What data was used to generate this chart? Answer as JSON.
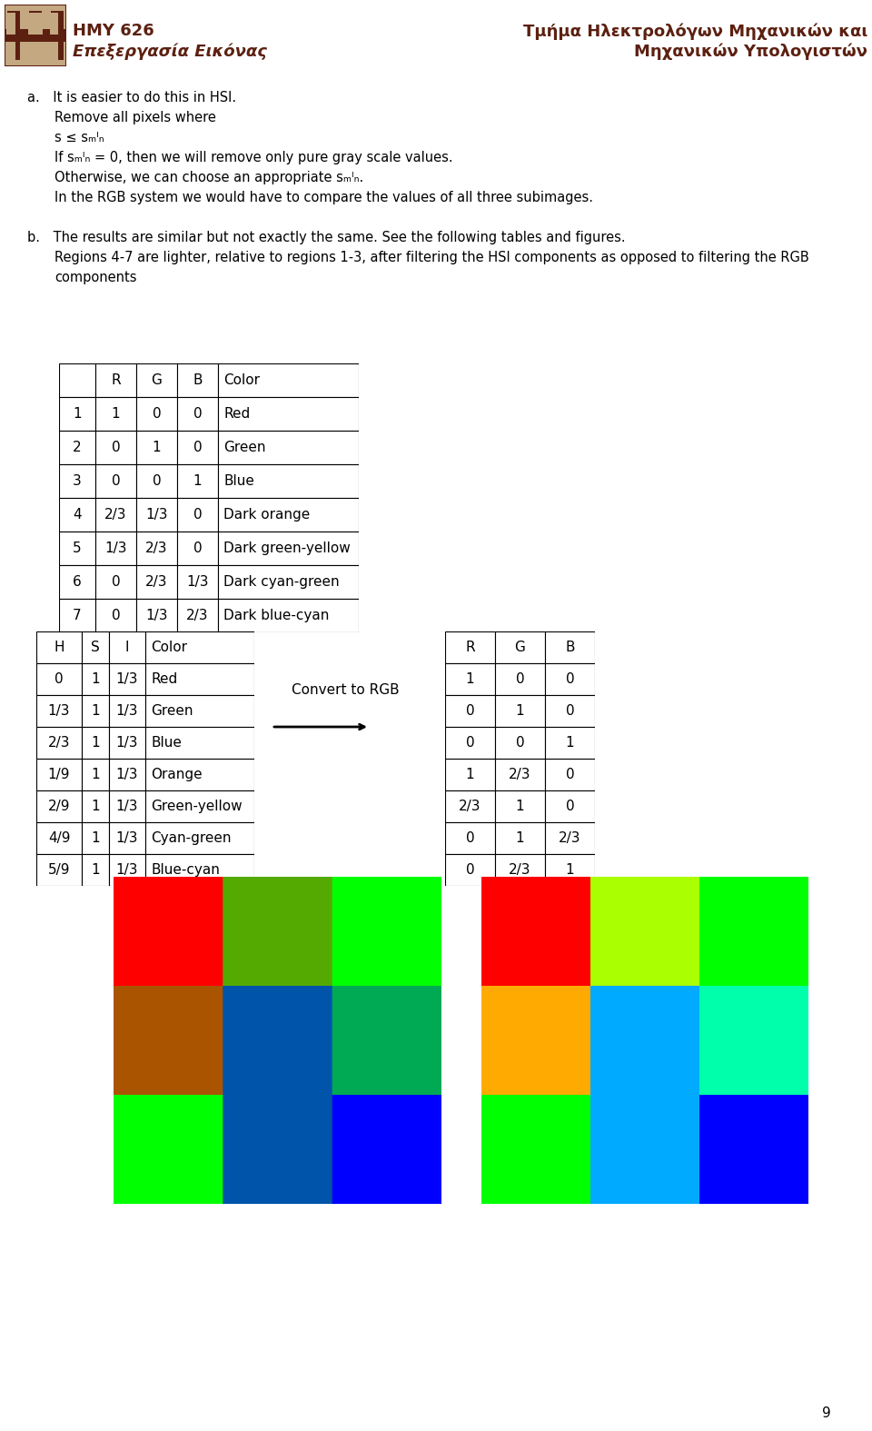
{
  "header_left_line1": "HMY 626",
  "header_left_line2": "Επεξεργασία Εικόνας",
  "header_right_line1": "Τμήμα Ηλεκτρολόγων Μηχανικών και",
  "header_right_line2": "Μηχανικών Υπολογιστών",
  "header_color": "#5C2010",
  "page_number": "9",
  "body_lines": [
    {
      "indent": 0,
      "text": "a. It is easier to do this in HSI."
    },
    {
      "indent": 1,
      "text": "Remove all pixels where"
    },
    {
      "indent": 1,
      "text": "s ≤ sₘᴵₙ"
    },
    {
      "indent": 1,
      "text": "If sₘᴵₙ = 0, then we will remove only pure gray scale values."
    },
    {
      "indent": 1,
      "text": "Otherwise, we can choose an appropriate sₘᴵₙ."
    },
    {
      "indent": 1,
      "text": "In the RGB system we would have to compare the values of all three subimages."
    },
    {
      "indent": 0,
      "text": ""
    },
    {
      "indent": 0,
      "text": "b. The results are similar but not exactly the same. See the following tables and figures."
    },
    {
      "indent": 1,
      "text": "Regions 4-7 are lighter, relative to regions 1-3, after filtering the HSI components as opposed to filtering the RGB"
    },
    {
      "indent": 1,
      "text": "components"
    }
  ],
  "table1_headers": [
    "",
    "R",
    "G",
    "B",
    "Color"
  ],
  "table1_rows": [
    [
      "1",
      "1",
      "0",
      "0",
      "Red"
    ],
    [
      "2",
      "0",
      "1",
      "0",
      "Green"
    ],
    [
      "3",
      "0",
      "0",
      "1",
      "Blue"
    ],
    [
      "4",
      "2/3",
      "1/3",
      "0",
      "Dark orange"
    ],
    [
      "5",
      "1/3",
      "2/3",
      "0",
      "Dark green-yellow"
    ],
    [
      "6",
      "0",
      "2/3",
      "1/3",
      "Dark cyan-green"
    ],
    [
      "7",
      "0",
      "1/3",
      "2/3",
      "Dark blue-cyan"
    ]
  ],
  "table1_colors": [
    [
      1.0,
      0.0,
      0.0
    ],
    [
      0.0,
      1.0,
      0.0
    ],
    [
      0.0,
      0.0,
      1.0
    ],
    [
      0.667,
      0.333,
      0.0
    ],
    [
      0.333,
      0.667,
      0.0
    ],
    [
      0.0,
      0.667,
      0.333
    ],
    [
      0.0,
      0.333,
      0.667
    ]
  ],
  "table2_headers": [
    "H",
    "S",
    "I",
    "Color"
  ],
  "table2_rows": [
    [
      "0",
      "1",
      "1/3",
      "Red"
    ],
    [
      "1/3",
      "1",
      "1/3",
      "Green"
    ],
    [
      "2/3",
      "1",
      "1/3",
      "Blue"
    ],
    [
      "1/9",
      "1",
      "1/3",
      "Orange"
    ],
    [
      "2/9",
      "1",
      "1/3",
      "Green-yellow"
    ],
    [
      "4/9",
      "1",
      "1/3",
      "Cyan-green"
    ],
    [
      "5/9",
      "1",
      "1/3",
      "Blue-cyan"
    ]
  ],
  "table3_headers": [
    "R",
    "G",
    "B"
  ],
  "table3_rows": [
    [
      "1",
      "0",
      "0"
    ],
    [
      "0",
      "1",
      "0"
    ],
    [
      "0",
      "0",
      "1"
    ],
    [
      "1",
      "2/3",
      "0"
    ],
    [
      "2/3",
      "1",
      "0"
    ],
    [
      "0",
      "1",
      "2/3"
    ],
    [
      "0",
      "2/3",
      "1"
    ]
  ],
  "table3_colors": [
    [
      1.0,
      0.0,
      0.0
    ],
    [
      0.0,
      1.0,
      0.0
    ],
    [
      0.0,
      0.0,
      1.0
    ],
    [
      1.0,
      0.667,
      0.0
    ],
    [
      0.667,
      1.0,
      0.0
    ],
    [
      0.0,
      1.0,
      0.667
    ],
    [
      0.0,
      0.667,
      1.0
    ]
  ],
  "img1_grid": [
    [
      [
        1.0,
        0.0,
        0.0
      ],
      [
        0.333,
        0.667,
        0.0
      ],
      [
        0.0,
        1.0,
        0.0
      ]
    ],
    [
      [
        0.667,
        0.333,
        0.0
      ],
      [
        0.0,
        0.333,
        0.667
      ],
      [
        0.0,
        0.667,
        0.333
      ]
    ],
    [
      [
        0.0,
        1.0,
        0.0
      ],
      [
        0.0,
        0.333,
        0.667
      ],
      [
        0.0,
        0.0,
        1.0
      ]
    ]
  ],
  "img2_grid": [
    [
      [
        1.0,
        0.0,
        0.0
      ],
      [
        0.667,
        1.0,
        0.0
      ],
      [
        0.0,
        1.0,
        0.0
      ]
    ],
    [
      [
        1.0,
        0.667,
        0.0
      ],
      [
        0.0,
        0.667,
        1.0
      ],
      [
        0.0,
        1.0,
        0.667
      ]
    ],
    [
      [
        0.0,
        1.0,
        0.0
      ],
      [
        0.0,
        0.667,
        1.0
      ],
      [
        0.0,
        0.0,
        1.0
      ]
    ]
  ],
  "bg_color": "#FFFFFF"
}
